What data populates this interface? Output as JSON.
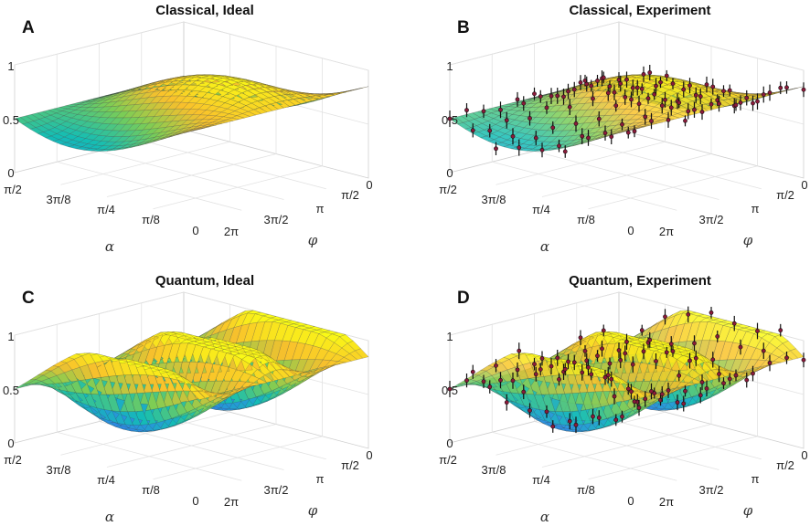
{
  "chart_data": [
    {
      "type": "surface",
      "letter": "A",
      "title": "Classical, Ideal",
      "model": "classical",
      "experiment": false,
      "xlabel": "α",
      "ylabel": "φ",
      "zticks": [
        "0",
        "0.5",
        "1"
      ],
      "alpha_ticks": [
        "π/2",
        "3π/8",
        "π/4",
        "π/8",
        "0"
      ],
      "phi_ticks": [
        "0",
        "π/2",
        "π",
        "3π/2",
        "2π"
      ],
      "alpha_range": [
        0,
        1.5708
      ],
      "phi_range": [
        0,
        6.2832
      ],
      "zlim": [
        0,
        1
      ]
    },
    {
      "type": "surface",
      "letter": "B",
      "title": "Classical, Experiment",
      "model": "classical",
      "experiment": true,
      "xlabel": "α",
      "ylabel": "φ",
      "zticks": [
        "0",
        "0.5",
        "1"
      ],
      "alpha_ticks": [
        "π/2",
        "3π/8",
        "π/4",
        "π/8",
        "0"
      ],
      "phi_ticks": [
        "0",
        "π/2",
        "π",
        "3π/2",
        "2π"
      ],
      "alpha_range": [
        0,
        1.5708
      ],
      "phi_range": [
        0,
        6.2832
      ],
      "zlim": [
        0,
        1
      ]
    },
    {
      "type": "surface",
      "letter": "C",
      "title": "Quantum, Ideal",
      "model": "quantum",
      "experiment": false,
      "xlabel": "α",
      "ylabel": "φ",
      "zticks": [
        "0",
        "0.5",
        "1"
      ],
      "alpha_ticks": [
        "π/2",
        "3π/8",
        "π/4",
        "π/8",
        "0"
      ],
      "phi_ticks": [
        "0",
        "π/2",
        "π",
        "3π/2",
        "2π"
      ],
      "alpha_range": [
        0,
        1.5708
      ],
      "phi_range": [
        0,
        6.2832
      ],
      "zlim": [
        0,
        1
      ]
    },
    {
      "type": "surface",
      "letter": "D",
      "title": "Quantum, Experiment",
      "model": "quantum",
      "experiment": true,
      "xlabel": "α",
      "ylabel": "φ",
      "zticks": [
        "0",
        "0.5",
        "1"
      ],
      "alpha_ticks": [
        "π/2",
        "3π/8",
        "π/4",
        "π/8",
        "0"
      ],
      "phi_ticks": [
        "0",
        "π/2",
        "π",
        "3π/2",
        "2π"
      ],
      "alpha_range": [
        0,
        1.5708
      ],
      "phi_range": [
        0,
        6.2832
      ],
      "zlim": [
        0,
        1
      ]
    }
  ],
  "colors": {
    "colormap": [
      "#3e26a8",
      "#2e88e6",
      "#13bdb5",
      "#7ccd55",
      "#f9c02c",
      "#f9fb15"
    ],
    "marker": "#8b1a3a",
    "errorbar": "#111111"
  }
}
